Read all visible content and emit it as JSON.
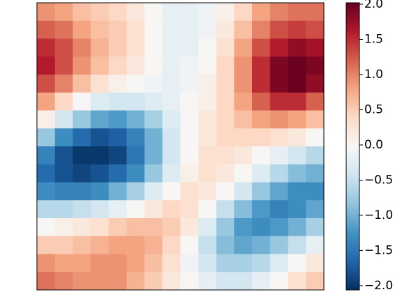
{
  "chart_data": {
    "type": "heatmap",
    "colormap": [
      "#053061",
      "#2166ac",
      "#4393c3",
      "#92c5de",
      "#d1e5f0",
      "#f7f7f7",
      "#fddbc7",
      "#f4a582",
      "#d6604d",
      "#b2182b",
      "#67001f"
    ],
    "clim": [
      -2.06,
      2.02
    ],
    "colorbar_ticks": [
      {
        "value": 2,
        "label": "2.0"
      },
      {
        "value": 1.5,
        "label": "1.5"
      },
      {
        "value": 1,
        "label": "1.0"
      },
      {
        "value": 0.5,
        "label": "0.5"
      },
      {
        "value": 0,
        "label": "0.0"
      },
      {
        "value": -0.5,
        "label": "−0.5"
      },
      {
        "value": -1,
        "label": "−1.0"
      },
      {
        "value": -1.5,
        "label": "−1.5"
      },
      {
        "value": -2,
        "label": "−2.0"
      }
    ],
    "z": [
      [
        0.9,
        0.8,
        0.6,
        0.5,
        0.4,
        0.2,
        0.0,
        -0.2,
        -0.2,
        -0.1,
        0.1,
        0.4,
        0.8,
        1.0,
        1.1,
        1.1
      ],
      [
        1.2,
        1.1,
        0.8,
        0.6,
        0.5,
        0.3,
        0.0,
        -0.2,
        -0.2,
        -0.1,
        0.2,
        0.6,
        1.0,
        1.3,
        1.4,
        1.3
      ],
      [
        1.5,
        1.3,
        1.0,
        0.7,
        0.5,
        0.3,
        0.0,
        -0.2,
        -0.2,
        0.0,
        0.3,
        0.8,
        1.3,
        1.6,
        1.8,
        1.7
      ],
      [
        1.6,
        1.3,
        0.9,
        0.6,
        0.4,
        0.2,
        0.0,
        -0.2,
        -0.1,
        0.0,
        0.4,
        0.9,
        1.5,
        1.9,
        2.0,
        1.9
      ],
      [
        1.3,
        1.0,
        0.6,
        0.3,
        0.1,
        0.0,
        -0.1,
        -0.2,
        -0.1,
        0.1,
        0.4,
        0.9,
        1.5,
        1.9,
        2.0,
        1.8
      ],
      [
        0.8,
        0.4,
        0.0,
        -0.3,
        -0.4,
        -0.4,
        -0.3,
        -0.2,
        0.0,
        0.1,
        0.4,
        0.8,
        1.2,
        1.5,
        1.5,
        1.2
      ],
      [
        0.1,
        -0.4,
        -0.8,
        -1.1,
        -1.2,
        -1.0,
        -0.7,
        -0.3,
        0.0,
        0.2,
        0.4,
        0.6,
        0.8,
        0.9,
        0.8,
        0.6
      ],
      [
        -0.8,
        -1.3,
        -1.6,
        -1.8,
        -1.7,
        -1.4,
        -1.0,
        -0.4,
        0.0,
        0.2,
        0.4,
        0.4,
        0.4,
        0.3,
        0.2,
        0.0
      ],
      [
        -1.4,
        -1.8,
        -2.0,
        -2.0,
        -1.9,
        -1.5,
        -1.0,
        -0.4,
        0.0,
        0.3,
        0.3,
        0.2,
        0.0,
        -0.2,
        -0.4,
        -0.6
      ],
      [
        -1.6,
        -1.8,
        -1.9,
        -1.8,
        -1.6,
        -1.3,
        -0.8,
        -0.3,
        0.1,
        0.3,
        0.2,
        0.0,
        -0.3,
        -0.6,
        -0.9,
        -1.0
      ],
      [
        -1.3,
        -1.4,
        -1.4,
        -1.3,
        -1.0,
        -0.7,
        -0.3,
        0.0,
        0.3,
        0.2,
        0.0,
        -0.4,
        -0.8,
        -1.1,
        -1.3,
        -1.3
      ],
      [
        -0.6,
        -0.6,
        -0.5,
        -0.4,
        -0.2,
        0.0,
        0.2,
        0.4,
        0.3,
        0.0,
        -0.5,
        -0.9,
        -1.2,
        -1.4,
        -1.3,
        -1.1
      ],
      [
        0.0,
        0.1,
        0.2,
        0.3,
        0.5,
        0.6,
        0.6,
        0.5,
        0.2,
        -0.3,
        -0.8,
        -1.2,
        -1.3,
        -1.2,
        -1.0,
        -0.7
      ],
      [
        0.5,
        0.5,
        0.6,
        0.7,
        0.8,
        0.8,
        0.7,
        0.4,
        0.0,
        -0.5,
        -0.9,
        -1.1,
        -1.0,
        -0.8,
        -0.5,
        -0.2
      ],
      [
        0.9,
        0.8,
        0.8,
        0.9,
        0.9,
        0.8,
        0.6,
        0.3,
        -0.1,
        -0.4,
        -0.7,
        -0.7,
        -0.6,
        -0.3,
        0.0,
        0.2
      ],
      [
        1.1,
        1.0,
        0.9,
        0.9,
        0.9,
        0.7,
        0.5,
        0.2,
        0.0,
        -0.2,
        -0.4,
        -0.4,
        -0.2,
        0.0,
        0.3,
        0.5
      ]
    ]
  }
}
